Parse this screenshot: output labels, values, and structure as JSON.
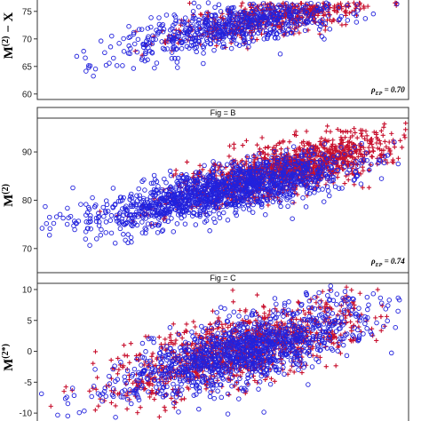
{
  "chart_data": [
    {
      "type": "scatter",
      "panel": "A",
      "strip_label": "",
      "ylabel_main": "M",
      "ylabel_sup": "(2)",
      "ylabel_tail": " − X",
      "ylim": [
        59,
        79
      ],
      "yticks": [
        60,
        65,
        70,
        75
      ],
      "annotation": "ρ",
      "annotation_sub": "EP",
      "annotation_value": " = 0.70",
      "series": [
        {
          "marker": "plus",
          "color": "#c8102e",
          "x_center": 0.66,
          "x_spread": 0.14,
          "y_center": 74.5,
          "y_spread": 2.4,
          "count": 600,
          "seed": 11,
          "corr": 0.7
        },
        {
          "marker": "circle",
          "color": "#2222dd",
          "x_center": 0.55,
          "x_spread": 0.16,
          "y_center": 72.5,
          "y_spread": 3.0,
          "count": 650,
          "seed": 12,
          "corr": 0.7
        }
      ]
    },
    {
      "type": "scatter",
      "panel": "B",
      "strip_label": "Fig = B",
      "ylabel_main": "M",
      "ylabel_sup": "(2)",
      "ylabel_tail": "",
      "ylim": [
        65,
        97
      ],
      "yticks": [
        70,
        80,
        90
      ],
      "annotation": "ρ",
      "annotation_sub": "EP",
      "annotation_value": " = 0.74",
      "series": [
        {
          "marker": "plus",
          "color": "#c8102e",
          "x_center": 0.68,
          "x_spread": 0.15,
          "y_center": 86.5,
          "y_spread": 3.8,
          "count": 1300,
          "seed": 21,
          "corr": 0.74
        },
        {
          "marker": "circle",
          "color": "#2222dd",
          "x_center": 0.5,
          "x_spread": 0.17,
          "y_center": 82.0,
          "y_spread": 3.6,
          "count": 1400,
          "seed": 22,
          "corr": 0.74
        }
      ]
    },
    {
      "type": "scatter",
      "panel": "C",
      "strip_label": "Fig = C",
      "ylabel_main": "M",
      "ylabel_sup": "(2*)",
      "ylabel_tail": "",
      "ylim": [
        -13,
        11
      ],
      "yticks": [
        -10,
        -5,
        0,
        5,
        10
      ],
      "annotation": "",
      "annotation_sub": "",
      "annotation_value": "",
      "series": [
        {
          "marker": "plus",
          "color": "#c8102e",
          "x_center": 0.55,
          "x_spread": 0.17,
          "y_center": 0.5,
          "y_spread": 3.8,
          "count": 1100,
          "seed": 31,
          "corr": 0.7
        },
        {
          "marker": "circle",
          "color": "#2222dd",
          "x_center": 0.55,
          "x_spread": 0.17,
          "y_center": 0.0,
          "y_spread": 3.8,
          "count": 1200,
          "seed": 32,
          "corr": 0.7
        }
      ]
    }
  ]
}
